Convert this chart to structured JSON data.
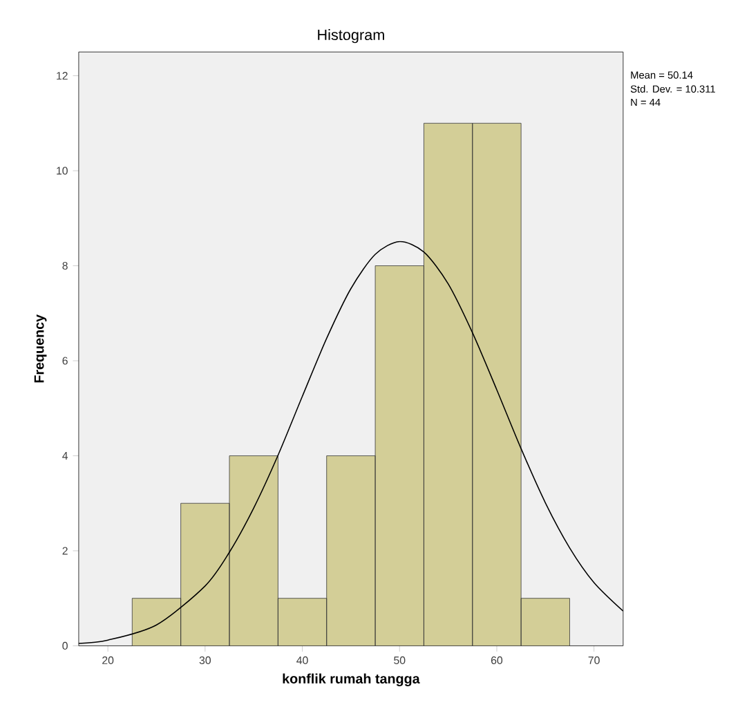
{
  "chart_data": {
    "type": "histogram",
    "title": "Histogram",
    "xlabel": "konflik rumah tangga",
    "ylabel": "Frequency",
    "bins": [
      22.5,
      27.5,
      32.5,
      37.5,
      42.5,
      47.5,
      52.5,
      57.5,
      62.5,
      67.5
    ],
    "values": [
      1,
      3,
      4,
      1,
      4,
      8,
      11,
      11,
      1
    ],
    "color": "#d3ce97",
    "series": [
      {
        "type": "line",
        "color": "#000000",
        "x": [
          17,
          20,
          25,
          30,
          32.5,
          35,
          37.5,
          40,
          42.5,
          45,
          47.5,
          50,
          52.5,
          55,
          57.5,
          60,
          62.5,
          65,
          67.5,
          70,
          73
        ],
        "values": [
          0.05,
          0.12,
          0.44,
          1.26,
          1.97,
          2.9,
          4.01,
          5.25,
          6.47,
          7.52,
          8.24,
          8.51,
          8.29,
          7.62,
          6.59,
          5.39,
          4.15,
          3.01,
          2.06,
          1.33,
          0.73
        ]
      }
    ],
    "xlim": [
      17,
      73
    ],
    "ylim": [
      0,
      12.5
    ],
    "xticks": [
      20,
      30,
      40,
      50,
      60,
      70
    ],
    "yticks": [
      0,
      2,
      4,
      6,
      8,
      10,
      12
    ],
    "annotations": [
      "Mean = 50.14",
      "Std. Dev. = 10.311",
      "N = 44"
    ]
  }
}
